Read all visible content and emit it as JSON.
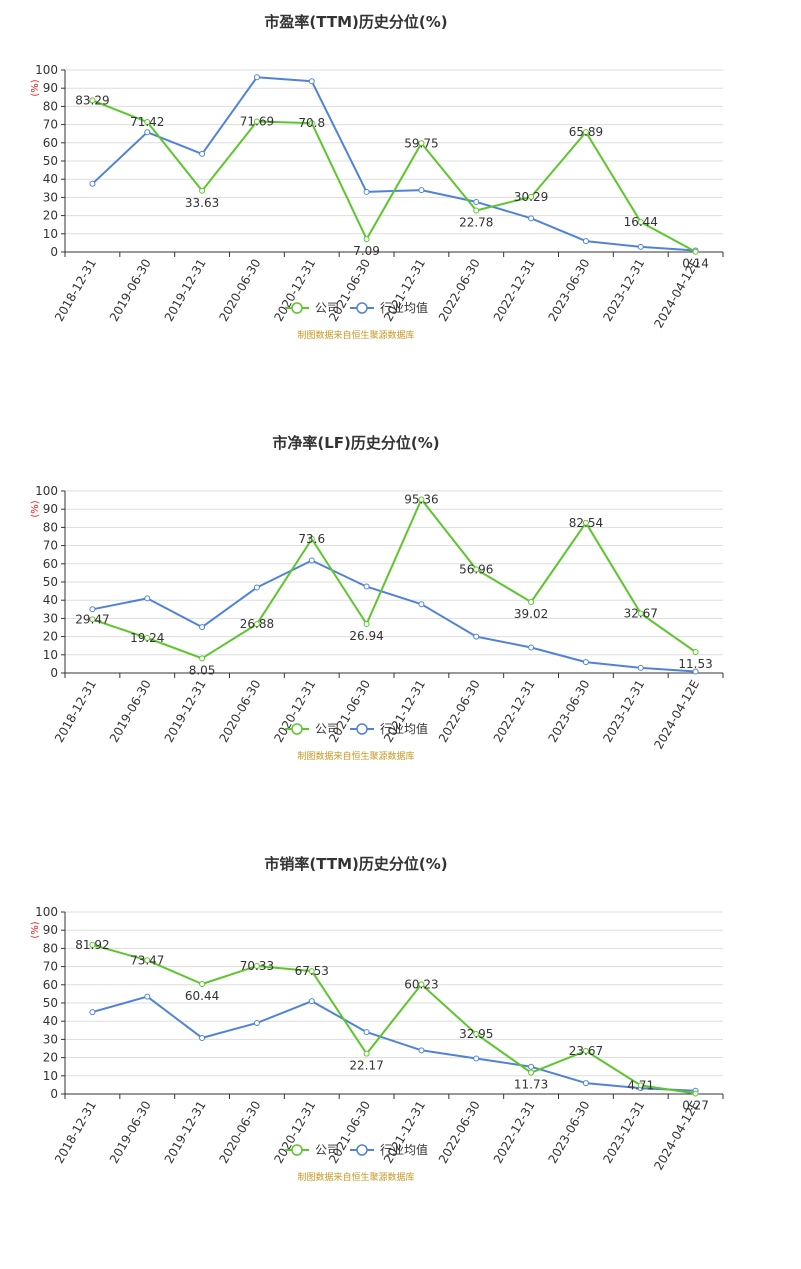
{
  "colors": {
    "company": "#5cc62c",
    "industry": "#5083d8",
    "grid": "#dddddd",
    "axis": "#333333",
    "unit": "#e02020",
    "source": "#c8961e"
  },
  "chart_data": [
    {
      "type": "line",
      "title": "市盈率(TTM)历史分位(%)",
      "ylabel": "(%)",
      "ylim": [
        0,
        100
      ],
      "yticks": [
        "0",
        "10",
        "20",
        "30",
        "40",
        "50",
        "60",
        "70",
        "80",
        "90",
        "100"
      ],
      "categories": [
        "2018-12-31",
        "2019-06-30",
        "2019-12-31",
        "2020-06-30",
        "2020-12-31",
        "2021-06-30",
        "2021-12-31",
        "2022-06-30",
        "2022-12-31",
        "2023-06-30",
        "2023-12-31",
        "2024-04-12E"
      ],
      "series": [
        {
          "name": "公司",
          "values": [
            83.29,
            71.42,
            33.63,
            71.69,
            70.8,
            7.09,
            59.75,
            22.78,
            30.29,
            65.89,
            16.44,
            0.14
          ],
          "labels": [
            "83.29",
            "71.42",
            "33.63",
            "71.69",
            "70.8",
            "7.09",
            "59.75",
            "22.78",
            "30.29",
            "65.89",
            "16.44",
            "0.14"
          ]
        },
        {
          "name": "行业均值",
          "values": [
            37.5,
            65.8,
            53.9,
            96.0,
            93.8,
            33.0,
            34.0,
            27.5,
            18.5,
            6.0,
            2.8,
            0.8
          ]
        }
      ],
      "legend": "bottom-center",
      "source": "制图数据来自恒生聚源数据库"
    },
    {
      "type": "line",
      "title": "市净率(LF)历史分位(%)",
      "ylabel": "(%)",
      "ylim": [
        0,
        100
      ],
      "yticks": [
        "0",
        "10",
        "20",
        "30",
        "40",
        "50",
        "60",
        "70",
        "80",
        "90",
        "100"
      ],
      "categories": [
        "2018-12-31",
        "2019-06-30",
        "2019-12-31",
        "2020-06-30",
        "2020-12-31",
        "2021-06-30",
        "2021-12-31",
        "2022-06-30",
        "2022-12-31",
        "2023-06-30",
        "2023-12-31",
        "2024-04-12E"
      ],
      "series": [
        {
          "name": "公司",
          "values": [
            29.47,
            19.24,
            8.05,
            26.88,
            73.6,
            26.94,
            95.36,
            56.96,
            39.02,
            82.54,
            32.67,
            11.53
          ],
          "labels": [
            "29.47",
            "19.24",
            "8.05",
            "26.88",
            "73.6",
            "26.94",
            "95.36",
            "56.96",
            "39.02",
            "82.54",
            "32.67",
            "11.53"
          ]
        },
        {
          "name": "行业均值",
          "values": [
            35.0,
            41.0,
            25.2,
            47.0,
            61.8,
            47.5,
            37.8,
            20.0,
            14.0,
            6.0,
            2.8,
            0.8
          ]
        }
      ],
      "legend": "bottom-center",
      "source": "制图数据来自恒生聚源数据库"
    },
    {
      "type": "line",
      "title": "市销率(TTM)历史分位(%)",
      "ylabel": "(%)",
      "ylim": [
        0,
        100
      ],
      "yticks": [
        "0",
        "10",
        "20",
        "30",
        "40",
        "50",
        "60",
        "70",
        "80",
        "90",
        "100"
      ],
      "categories": [
        "2018-12-31",
        "2019-06-30",
        "2019-12-31",
        "2020-06-30",
        "2020-12-31",
        "2021-06-30",
        "2021-12-31",
        "2022-06-30",
        "2022-12-31",
        "2023-06-30",
        "2023-12-31",
        "2024-04-12E"
      ],
      "series": [
        {
          "name": "公司",
          "values": [
            81.92,
            73.47,
            60.44,
            70.33,
            67.53,
            22.17,
            60.23,
            32.95,
            11.73,
            23.67,
            4.71,
            0.27
          ],
          "labels": [
            "81.92",
            "73.47",
            "60.44",
            "70.33",
            "67.53",
            "22.17",
            "60.23",
            "32.95",
            "11.73",
            "23.67",
            "4.71",
            "0.27"
          ]
        },
        {
          "name": "行业均值",
          "values": [
            45.0,
            53.5,
            30.8,
            39.0,
            51.0,
            34.0,
            24.0,
            19.5,
            15.0,
            6.0,
            3.2,
            1.8
          ]
        }
      ],
      "legend": "bottom-center",
      "source": "制图数据来自恒生聚源数据库"
    }
  ]
}
